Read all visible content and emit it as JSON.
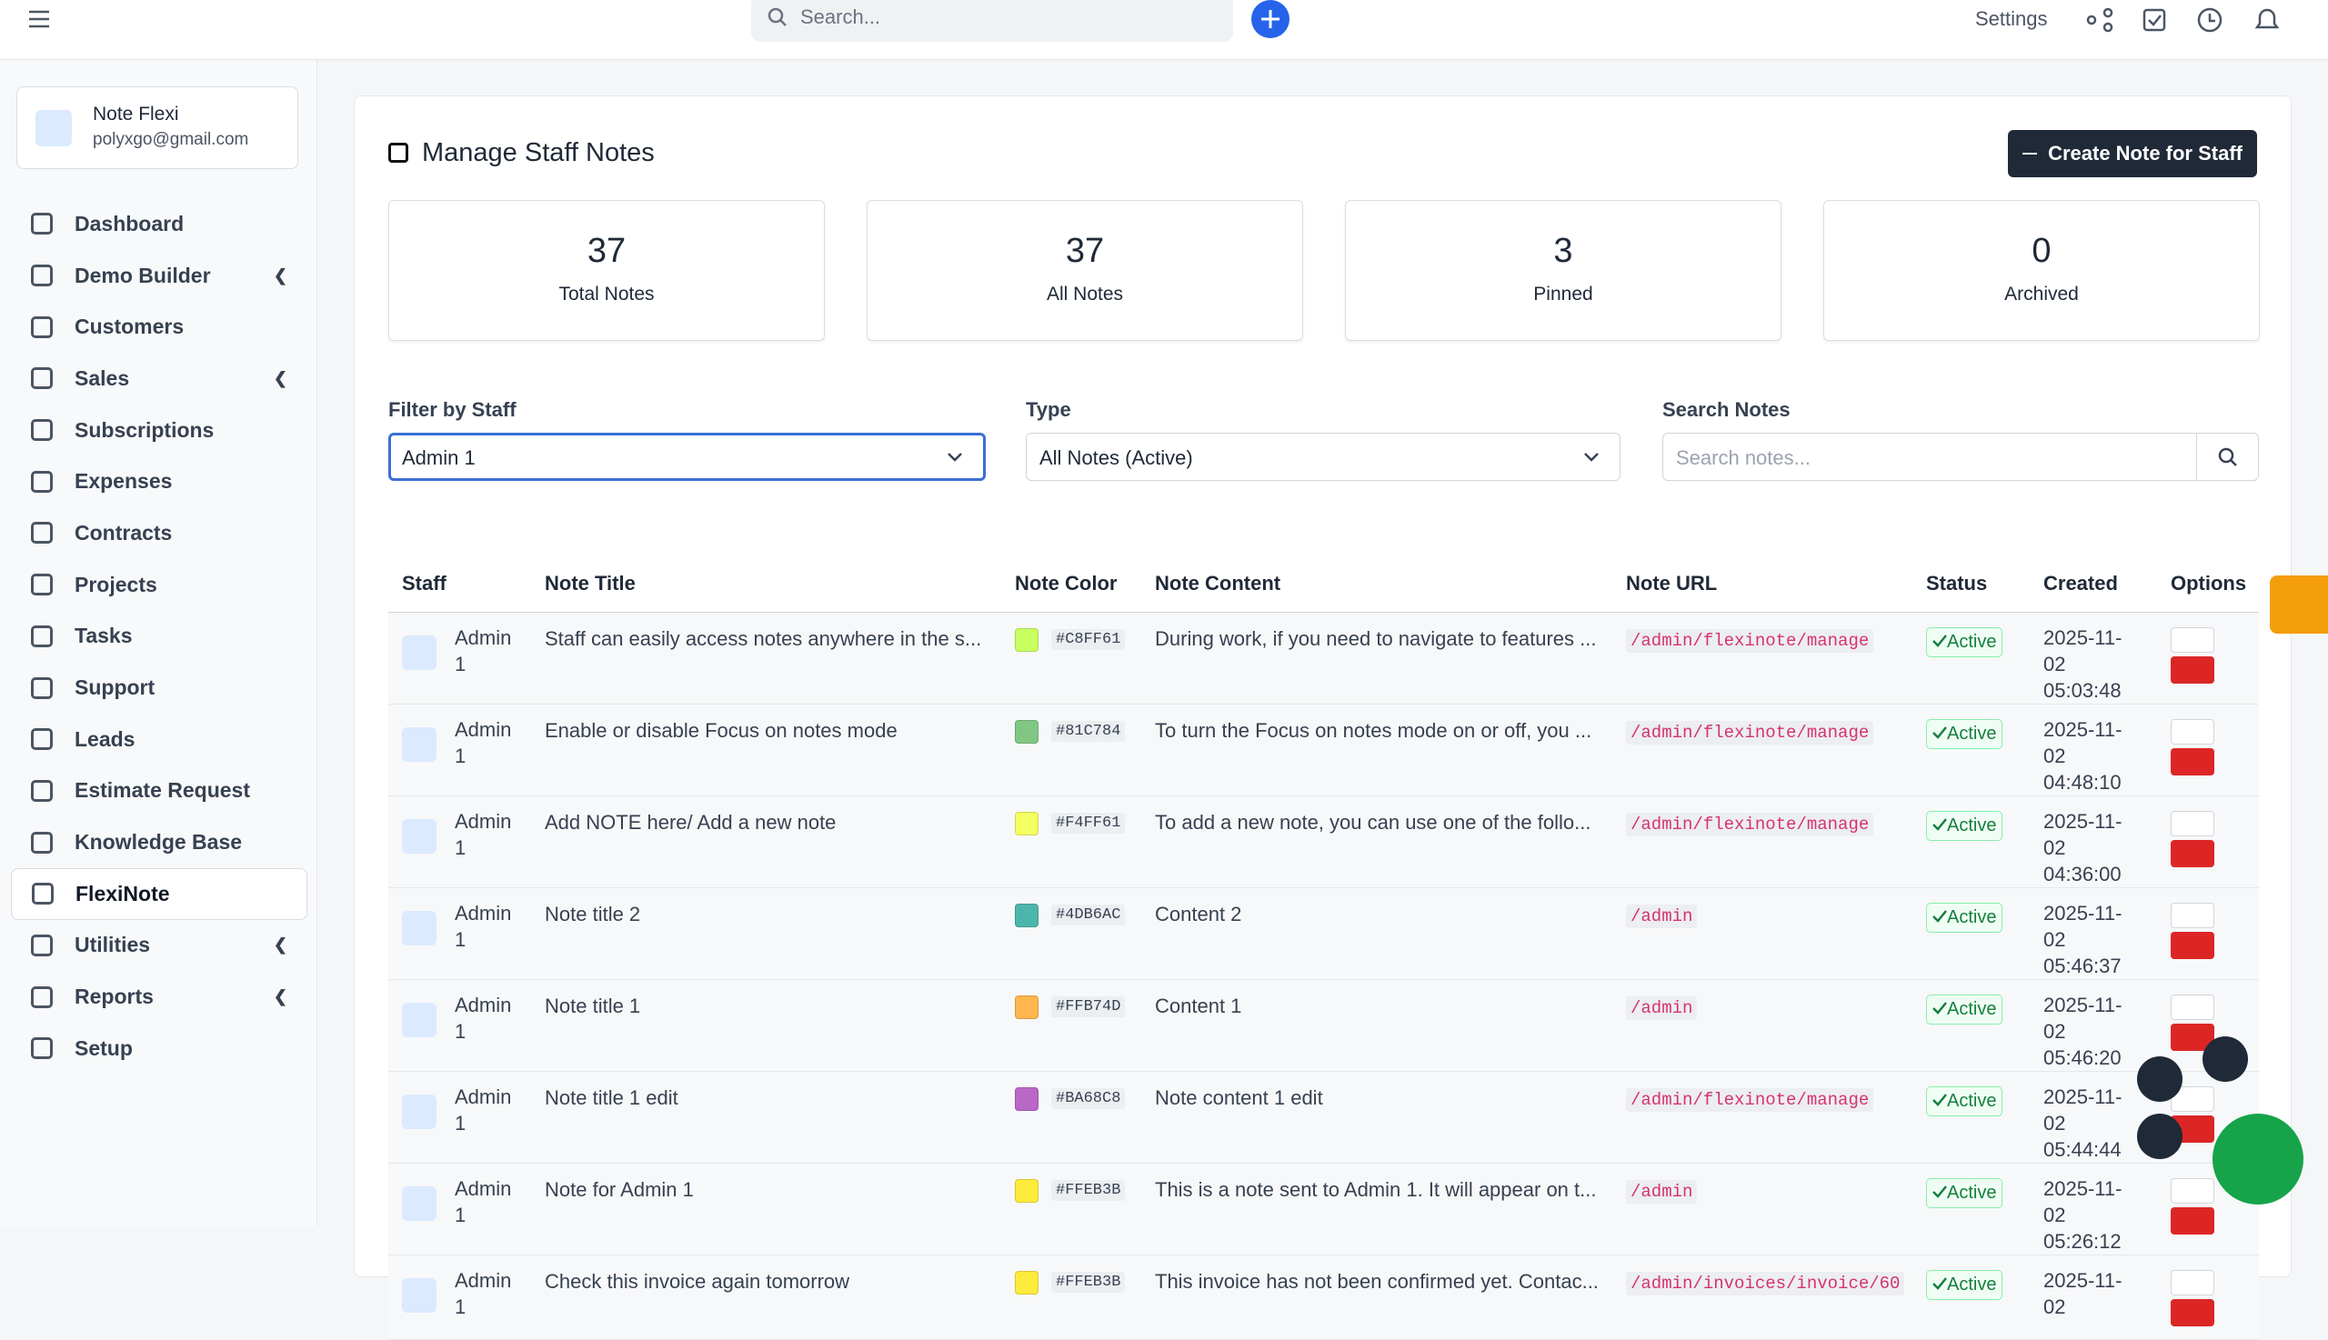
{
  "topbar": {
    "search_placeholder": "Search...",
    "settings": "Settings"
  },
  "sidebar": {
    "user_name": "Note Flexi",
    "user_email": "polyxgo@gmail.com",
    "menu": [
      {
        "label": "Dashboard"
      },
      {
        "label": "Demo Builder",
        "submenu": true
      },
      {
        "label": "Customers"
      },
      {
        "label": "Sales",
        "submenu": true
      },
      {
        "label": "Subscriptions"
      },
      {
        "label": "Expenses"
      },
      {
        "label": "Contracts"
      },
      {
        "label": "Projects"
      },
      {
        "label": "Tasks"
      },
      {
        "label": "Support"
      },
      {
        "label": "Leads"
      },
      {
        "label": "Estimate Request"
      },
      {
        "label": "Knowledge Base"
      },
      {
        "label": "FlexiNote",
        "active": true
      },
      {
        "label": "Utilities",
        "submenu": true
      },
      {
        "label": "Reports",
        "submenu": true
      },
      {
        "label": "Setup"
      }
    ]
  },
  "page": {
    "title": "Manage Staff Notes",
    "create_button": "Create Note for Staff"
  },
  "stats": [
    {
      "value": 37,
      "label": "Total Notes"
    },
    {
      "value": 37,
      "label": "All Notes"
    },
    {
      "value": 3,
      "label": "Pinned"
    },
    {
      "value": 0,
      "label": "Archived"
    }
  ],
  "filters": {
    "staff_label": "Filter by Staff",
    "staff_value": "Admin 1",
    "type_label": "Type",
    "type_value": "All Notes (Active)",
    "search_label": "Search Notes",
    "search_placeholder": "Search notes..."
  },
  "table": {
    "headers": [
      "Staff",
      "Note Title",
      "Note Color",
      "Note Content",
      "Note URL",
      "Status",
      "Created",
      "Options"
    ],
    "rows": [
      [
        "Admin 1",
        "Staff can easily access notes anywhere in the s...",
        "#C8FF61",
        "During work, if you need to navigate to features ...",
        "/admin/flexinote/manage",
        "Active",
        "2025-11-02 05:03:48"
      ],
      [
        "Admin 1",
        "Enable or disable Focus on notes mode",
        "#81C784",
        "To turn the Focus on notes mode on or off, you ...",
        "/admin/flexinote/manage",
        "Active",
        "2025-11-02 04:48:10"
      ],
      [
        "Admin 1",
        "Add NOTE here/ Add a new note",
        "#F4FF61",
        "To add a new note, you can use one of the follo...",
        "/admin/flexinote/manage",
        "Active",
        "2025-11-02 04:36:00"
      ],
      [
        "Admin 1",
        "Note title 2",
        "#4DB6AC",
        "Content 2",
        "/admin",
        "Active",
        "2025-11-02 05:46:37"
      ],
      [
        "Admin 1",
        "Note title 1",
        "#FFB74D",
        "Content 1",
        "/admin",
        "Active",
        "2025-11-02 05:46:20"
      ],
      [
        "Admin 1",
        "Note title 1 edit",
        "#BA68C8",
        "Note content 1 edit",
        "/admin/flexinote/manage",
        "Active",
        "2025-11-02 05:44:44"
      ],
      [
        "Admin 1",
        "Note for Admin 1",
        "#FFEB3B",
        "This is a note sent to Admin 1. It will appear on t...",
        "/admin",
        "Active",
        "2025-11-02 05:26:12"
      ],
      [
        "Admin 1",
        "Check this invoice again tomorrow",
        "#FFEB3B",
        "This invoice has not been confirmed yet. Contac...",
        "/admin/invoices/invoice/60",
        "Active",
        "2025-11-02"
      ]
    ]
  }
}
